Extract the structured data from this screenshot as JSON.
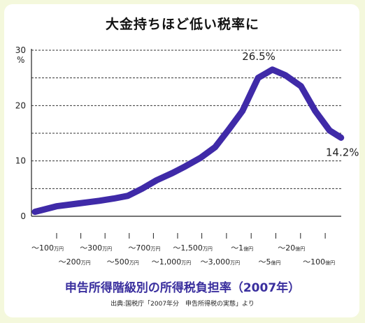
{
  "title": "大金持ちほど低い税率に",
  "subtitle": "申告所得階級別の所得税負担率（2007年）",
  "source": "出典:国税庁「2007年分　申告所得税の実態」より",
  "chart_data": {
    "type": "line",
    "ylabel": "%",
    "ylim": [
      0,
      30
    ],
    "yticks": [
      0,
      10,
      20,
      30
    ],
    "grid": true,
    "line_color": "#3f2aa8",
    "categories": [
      [
        "～100",
        "万円"
      ],
      [
        "～200",
        "万円"
      ],
      [
        "～300",
        "万円"
      ],
      [
        "～500",
        "万円"
      ],
      [
        "～700",
        "万円"
      ],
      [
        "～1,000",
        "万円"
      ],
      [
        "～1,500",
        "万円"
      ],
      [
        "～3,000",
        "万円"
      ],
      [
        "～1",
        "億円"
      ],
      [
        "～5",
        "億円"
      ],
      [
        "～20",
        "億円"
      ],
      [
        "～100",
        "億円"
      ]
    ],
    "x": [
      0.0,
      1.5,
      3.0,
      4.5,
      5.5,
      6.5,
      7.5,
      8.5,
      9.6,
      10.5,
      11.6,
      12.6,
      13.5,
      14.5,
      15.6,
      16.6,
      17.5,
      18.6,
      19.6,
      20.6,
      21.4
    ],
    "y": [
      0.8,
      1.8,
      2.3,
      2.8,
      3.2,
      3.7,
      5.0,
      6.5,
      7.8,
      9.0,
      10.6,
      12.5,
      15.5,
      19.0,
      25.0,
      26.5,
      25.5,
      23.5,
      19.0,
      15.5,
      14.2
    ],
    "annotations": [
      {
        "text": "26.5%",
        "x": 15.6,
        "y": 26.5
      },
      {
        "text": "14.2%",
        "x": 21.4,
        "y": 14.2
      }
    ]
  }
}
